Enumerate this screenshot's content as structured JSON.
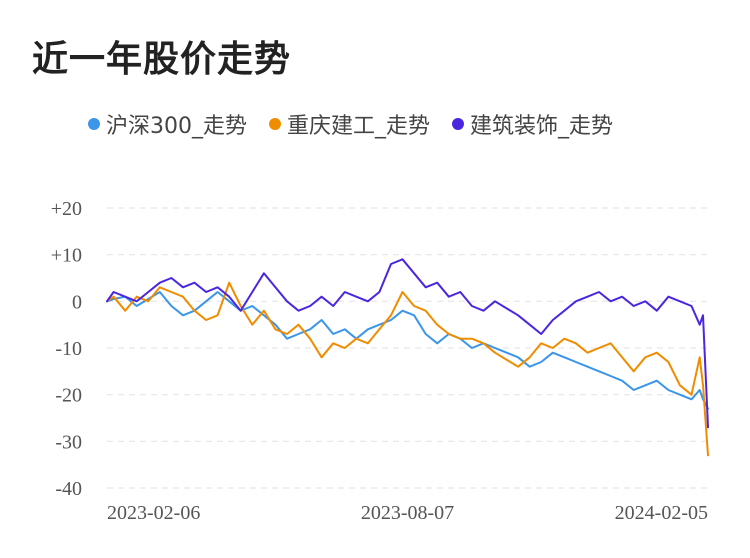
{
  "title": "近一年股价走势",
  "colors": {
    "hs300": "#3b95e8",
    "cqjg": "#f08c00",
    "jzzs": "#4b26e0",
    "grid": "#e6e6e6"
  },
  "chart_data": {
    "type": "line",
    "title": "近一年股价走势",
    "xlabel": "",
    "ylabel": "",
    "ylim": [
      -40,
      20
    ],
    "yticks": [
      20,
      10,
      0,
      -10,
      -20,
      -30,
      -40
    ],
    "ytick_labels": [
      "+20",
      "+10",
      "0",
      "-10",
      "-20",
      "-30",
      "-40"
    ],
    "xticks": [
      "2023-02-06",
      "2023-08-07",
      "2024-02-05"
    ],
    "xrange": [
      "2023-02-06",
      "2024-02-05"
    ],
    "grid": true,
    "legend": "top",
    "series": [
      {
        "name": "沪深300_走势",
        "color": "#3b95e8",
        "x": [
          "2023-02-06",
          "2023-02-10",
          "2023-02-17",
          "2023-02-24",
          "2023-03-03",
          "2023-03-10",
          "2023-03-17",
          "2023-03-24",
          "2023-03-31",
          "2023-04-07",
          "2023-04-14",
          "2023-04-21",
          "2023-04-28",
          "2023-05-05",
          "2023-05-12",
          "2023-05-19",
          "2023-05-26",
          "2023-06-02",
          "2023-06-09",
          "2023-06-16",
          "2023-06-23",
          "2023-06-30",
          "2023-07-07",
          "2023-07-14",
          "2023-07-21",
          "2023-07-28",
          "2023-08-04",
          "2023-08-11",
          "2023-08-18",
          "2023-08-25",
          "2023-09-01",
          "2023-09-08",
          "2023-09-15",
          "2023-09-22",
          "2023-09-29",
          "2023-10-13",
          "2023-10-20",
          "2023-10-27",
          "2023-11-03",
          "2023-11-10",
          "2023-11-17",
          "2023-11-24",
          "2023-12-01",
          "2023-12-08",
          "2023-12-15",
          "2023-12-22",
          "2023-12-29",
          "2024-01-05",
          "2024-01-12",
          "2024-01-19",
          "2024-01-26",
          "2024-01-31",
          "2024-02-02",
          "2024-02-05"
        ],
        "values": [
          0.0,
          0.5,
          1.0,
          -1.0,
          0.5,
          2.0,
          -1.0,
          -3.0,
          -2.0,
          0.0,
          2.0,
          0.0,
          -2.0,
          -1.0,
          -3.0,
          -5.0,
          -8.0,
          -7.0,
          -6.0,
          -4.0,
          -7.0,
          -6.0,
          -8.0,
          -6.0,
          -5.0,
          -4.0,
          -2.0,
          -3.0,
          -7.0,
          -9.0,
          -7.0,
          -8.0,
          -10.0,
          -9.0,
          -10.0,
          -12.0,
          -14.0,
          -13.0,
          -11.0,
          -12.0,
          -13.0,
          -14.0,
          -15.0,
          -16.0,
          -17.0,
          -19.0,
          -18.0,
          -17.0,
          -19.0,
          -20.0,
          -21.0,
          -19.0,
          -21.0,
          -23.0
        ]
      },
      {
        "name": "重庆建工_走势",
        "color": "#f08c00",
        "x": [
          "2023-02-06",
          "2023-02-10",
          "2023-02-17",
          "2023-02-24",
          "2023-03-03",
          "2023-03-10",
          "2023-03-17",
          "2023-03-24",
          "2023-03-31",
          "2023-04-07",
          "2023-04-14",
          "2023-04-21",
          "2023-04-28",
          "2023-05-05",
          "2023-05-12",
          "2023-05-19",
          "2023-05-26",
          "2023-06-02",
          "2023-06-09",
          "2023-06-16",
          "2023-06-23",
          "2023-06-30",
          "2023-07-07",
          "2023-07-14",
          "2023-07-21",
          "2023-07-28",
          "2023-08-04",
          "2023-08-11",
          "2023-08-18",
          "2023-08-25",
          "2023-09-01",
          "2023-09-08",
          "2023-09-15",
          "2023-09-22",
          "2023-09-29",
          "2023-10-13",
          "2023-10-20",
          "2023-10-27",
          "2023-11-03",
          "2023-11-10",
          "2023-11-17",
          "2023-11-24",
          "2023-12-01",
          "2023-12-08",
          "2023-12-15",
          "2023-12-22",
          "2023-12-29",
          "2024-01-05",
          "2024-01-12",
          "2024-01-19",
          "2024-01-26",
          "2024-01-31",
          "2024-02-02",
          "2024-02-05"
        ],
        "values": [
          0.0,
          1.0,
          -2.0,
          1.0,
          0.0,
          3.0,
          2.0,
          1.0,
          -2.0,
          -4.0,
          -3.0,
          4.0,
          -1.0,
          -5.0,
          -2.0,
          -6.0,
          -7.0,
          -5.0,
          -8.0,
          -12.0,
          -9.0,
          -10.0,
          -8.0,
          -9.0,
          -6.0,
          -3.0,
          2.0,
          -1.0,
          -2.0,
          -5.0,
          -7.0,
          -8.0,
          -8.0,
          -9.0,
          -11.0,
          -14.0,
          -12.0,
          -9.0,
          -10.0,
          -8.0,
          -9.0,
          -11.0,
          -10.0,
          -9.0,
          -12.0,
          -15.0,
          -12.0,
          -11.0,
          -13.0,
          -18.0,
          -20.0,
          -12.0,
          -18.0,
          -33.0
        ]
      },
      {
        "name": "建筑装饰_走势",
        "color": "#4b26e0",
        "x": [
          "2023-02-06",
          "2023-02-10",
          "2023-02-17",
          "2023-02-24",
          "2023-03-03",
          "2023-03-10",
          "2023-03-17",
          "2023-03-24",
          "2023-03-31",
          "2023-04-07",
          "2023-04-14",
          "2023-04-21",
          "2023-04-28",
          "2023-05-05",
          "2023-05-12",
          "2023-05-19",
          "2023-05-26",
          "2023-06-02",
          "2023-06-09",
          "2023-06-16",
          "2023-06-23",
          "2023-06-30",
          "2023-07-07",
          "2023-07-14",
          "2023-07-21",
          "2023-07-28",
          "2023-08-04",
          "2023-08-11",
          "2023-08-18",
          "2023-08-25",
          "2023-09-01",
          "2023-09-08",
          "2023-09-15",
          "2023-09-22",
          "2023-09-29",
          "2023-10-13",
          "2023-10-20",
          "2023-10-27",
          "2023-11-03",
          "2023-11-10",
          "2023-11-17",
          "2023-11-24",
          "2023-12-01",
          "2023-12-08",
          "2023-12-15",
          "2023-12-22",
          "2023-12-29",
          "2024-01-05",
          "2024-01-12",
          "2024-01-19",
          "2024-01-26",
          "2024-01-31",
          "2024-02-02",
          "2024-02-05"
        ],
        "values": [
          0.0,
          2.0,
          1.0,
          0.0,
          2.0,
          4.0,
          5.0,
          3.0,
          4.0,
          2.0,
          3.0,
          1.0,
          -2.0,
          2.0,
          6.0,
          3.0,
          0.0,
          -2.0,
          -1.0,
          1.0,
          -1.0,
          2.0,
          1.0,
          0.0,
          2.0,
          8.0,
          9.0,
          6.0,
          3.0,
          4.0,
          1.0,
          2.0,
          -1.0,
          -2.0,
          0.0,
          -3.0,
          -5.0,
          -7.0,
          -4.0,
          -2.0,
          0.0,
          1.0,
          2.0,
          0.0,
          1.0,
          -1.0,
          0.0,
          -2.0,
          1.0,
          0.0,
          -1.0,
          -5.0,
          -3.0,
          -27.0
        ]
      }
    ]
  }
}
